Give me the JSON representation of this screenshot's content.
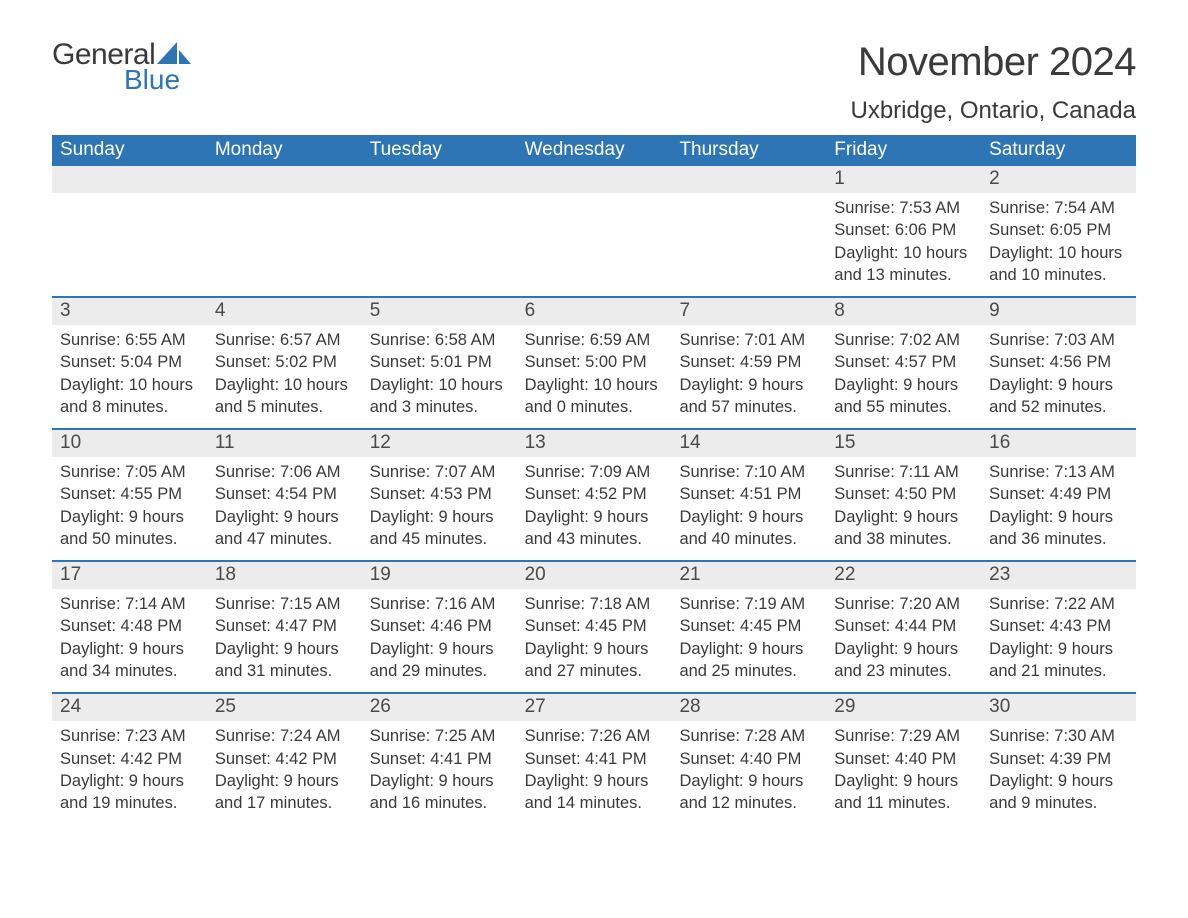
{
  "logo": {
    "general": "General",
    "blue": "Blue",
    "sail_color": "#2e75b6"
  },
  "title": "November 2024",
  "location": "Uxbridge, Ontario, Canada",
  "colors": {
    "header_bg": "#2e75b6",
    "header_text": "#ffffff",
    "daynum_bg": "#ececec",
    "week_border": "#2e75b6",
    "body_text": "#3a3a3a"
  },
  "dow": [
    "Sunday",
    "Monday",
    "Tuesday",
    "Wednesday",
    "Thursday",
    "Friday",
    "Saturday"
  ],
  "weeks": [
    [
      {
        "n": "",
        "sr": "",
        "ss": "",
        "dl": ""
      },
      {
        "n": "",
        "sr": "",
        "ss": "",
        "dl": ""
      },
      {
        "n": "",
        "sr": "",
        "ss": "",
        "dl": ""
      },
      {
        "n": "",
        "sr": "",
        "ss": "",
        "dl": ""
      },
      {
        "n": "",
        "sr": "",
        "ss": "",
        "dl": ""
      },
      {
        "n": "1",
        "sr": "Sunrise: 7:53 AM",
        "ss": "Sunset: 6:06 PM",
        "dl": "Daylight: 10 hours and 13 minutes."
      },
      {
        "n": "2",
        "sr": "Sunrise: 7:54 AM",
        "ss": "Sunset: 6:05 PM",
        "dl": "Daylight: 10 hours and 10 minutes."
      }
    ],
    [
      {
        "n": "3",
        "sr": "Sunrise: 6:55 AM",
        "ss": "Sunset: 5:04 PM",
        "dl": "Daylight: 10 hours and 8 minutes."
      },
      {
        "n": "4",
        "sr": "Sunrise: 6:57 AM",
        "ss": "Sunset: 5:02 PM",
        "dl": "Daylight: 10 hours and 5 minutes."
      },
      {
        "n": "5",
        "sr": "Sunrise: 6:58 AM",
        "ss": "Sunset: 5:01 PM",
        "dl": "Daylight: 10 hours and 3 minutes."
      },
      {
        "n": "6",
        "sr": "Sunrise: 6:59 AM",
        "ss": "Sunset: 5:00 PM",
        "dl": "Daylight: 10 hours and 0 minutes."
      },
      {
        "n": "7",
        "sr": "Sunrise: 7:01 AM",
        "ss": "Sunset: 4:59 PM",
        "dl": "Daylight: 9 hours and 57 minutes."
      },
      {
        "n": "8",
        "sr": "Sunrise: 7:02 AM",
        "ss": "Sunset: 4:57 PM",
        "dl": "Daylight: 9 hours and 55 minutes."
      },
      {
        "n": "9",
        "sr": "Sunrise: 7:03 AM",
        "ss": "Sunset: 4:56 PM",
        "dl": "Daylight: 9 hours and 52 minutes."
      }
    ],
    [
      {
        "n": "10",
        "sr": "Sunrise: 7:05 AM",
        "ss": "Sunset: 4:55 PM",
        "dl": "Daylight: 9 hours and 50 minutes."
      },
      {
        "n": "11",
        "sr": "Sunrise: 7:06 AM",
        "ss": "Sunset: 4:54 PM",
        "dl": "Daylight: 9 hours and 47 minutes."
      },
      {
        "n": "12",
        "sr": "Sunrise: 7:07 AM",
        "ss": "Sunset: 4:53 PM",
        "dl": "Daylight: 9 hours and 45 minutes."
      },
      {
        "n": "13",
        "sr": "Sunrise: 7:09 AM",
        "ss": "Sunset: 4:52 PM",
        "dl": "Daylight: 9 hours and 43 minutes."
      },
      {
        "n": "14",
        "sr": "Sunrise: 7:10 AM",
        "ss": "Sunset: 4:51 PM",
        "dl": "Daylight: 9 hours and 40 minutes."
      },
      {
        "n": "15",
        "sr": "Sunrise: 7:11 AM",
        "ss": "Sunset: 4:50 PM",
        "dl": "Daylight: 9 hours and 38 minutes."
      },
      {
        "n": "16",
        "sr": "Sunrise: 7:13 AM",
        "ss": "Sunset: 4:49 PM",
        "dl": "Daylight: 9 hours and 36 minutes."
      }
    ],
    [
      {
        "n": "17",
        "sr": "Sunrise: 7:14 AM",
        "ss": "Sunset: 4:48 PM",
        "dl": "Daylight: 9 hours and 34 minutes."
      },
      {
        "n": "18",
        "sr": "Sunrise: 7:15 AM",
        "ss": "Sunset: 4:47 PM",
        "dl": "Daylight: 9 hours and 31 minutes."
      },
      {
        "n": "19",
        "sr": "Sunrise: 7:16 AM",
        "ss": "Sunset: 4:46 PM",
        "dl": "Daylight: 9 hours and 29 minutes."
      },
      {
        "n": "20",
        "sr": "Sunrise: 7:18 AM",
        "ss": "Sunset: 4:45 PM",
        "dl": "Daylight: 9 hours and 27 minutes."
      },
      {
        "n": "21",
        "sr": "Sunrise: 7:19 AM",
        "ss": "Sunset: 4:45 PM",
        "dl": "Daylight: 9 hours and 25 minutes."
      },
      {
        "n": "22",
        "sr": "Sunrise: 7:20 AM",
        "ss": "Sunset: 4:44 PM",
        "dl": "Daylight: 9 hours and 23 minutes."
      },
      {
        "n": "23",
        "sr": "Sunrise: 7:22 AM",
        "ss": "Sunset: 4:43 PM",
        "dl": "Daylight: 9 hours and 21 minutes."
      }
    ],
    [
      {
        "n": "24",
        "sr": "Sunrise: 7:23 AM",
        "ss": "Sunset: 4:42 PM",
        "dl": "Daylight: 9 hours and 19 minutes."
      },
      {
        "n": "25",
        "sr": "Sunrise: 7:24 AM",
        "ss": "Sunset: 4:42 PM",
        "dl": "Daylight: 9 hours and 17 minutes."
      },
      {
        "n": "26",
        "sr": "Sunrise: 7:25 AM",
        "ss": "Sunset: 4:41 PM",
        "dl": "Daylight: 9 hours and 16 minutes."
      },
      {
        "n": "27",
        "sr": "Sunrise: 7:26 AM",
        "ss": "Sunset: 4:41 PM",
        "dl": "Daylight: 9 hours and 14 minutes."
      },
      {
        "n": "28",
        "sr": "Sunrise: 7:28 AM",
        "ss": "Sunset: 4:40 PM",
        "dl": "Daylight: 9 hours and 12 minutes."
      },
      {
        "n": "29",
        "sr": "Sunrise: 7:29 AM",
        "ss": "Sunset: 4:40 PM",
        "dl": "Daylight: 9 hours and 11 minutes."
      },
      {
        "n": "30",
        "sr": "Sunrise: 7:30 AM",
        "ss": "Sunset: 4:39 PM",
        "dl": "Daylight: 9 hours and 9 minutes."
      }
    ]
  ]
}
